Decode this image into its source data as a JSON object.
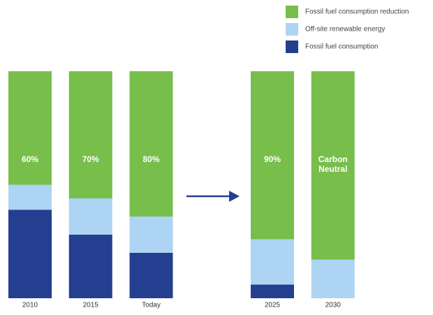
{
  "chart_data": {
    "type": "stacked_bar",
    "categories": [
      "2010",
      "2015",
      "Today",
      null,
      "2025",
      "2030"
    ],
    "series": [
      {
        "name": "Fossil fuel consumption",
        "color": "#243f8f",
        "values": [
          39,
          28,
          20,
          null,
          6,
          0
        ]
      },
      {
        "name": "Off-site renewable energy",
        "color": "#aed4f3",
        "values": [
          11,
          16,
          16,
          null,
          20,
          17
        ]
      },
      {
        "name": "Fossil fuel consumption reduction",
        "color": "#78be4b",
        "values": [
          50,
          56,
          64,
          null,
          74,
          83
        ]
      }
    ],
    "annotations": [
      [
        "60%"
      ],
      [
        "70%"
      ],
      [
        "80%"
      ],
      null,
      [
        "90%"
      ],
      [
        "Carbon",
        "Neutral"
      ]
    ],
    "ylim": [
      0,
      100
    ],
    "legend": "top-right"
  }
}
